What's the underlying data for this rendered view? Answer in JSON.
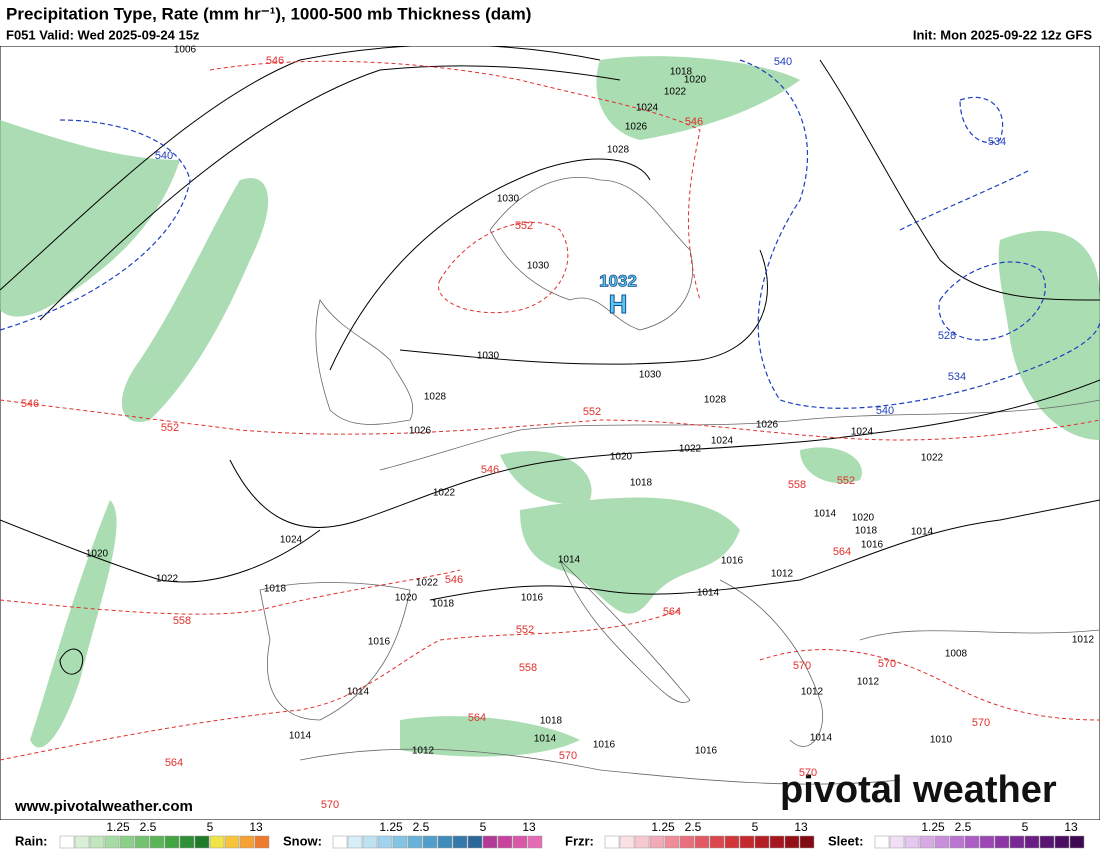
{
  "header": {
    "title": "Precipitation Type, Rate (mm hr⁻¹), 1000-500 mb Thickness (dam)",
    "valid": "F051 Valid: Wed 2025-09-24 15z",
    "init": "Init: Mon 2025-09-22 12z GFS"
  },
  "high": {
    "pressure": 1032,
    "letter": "H"
  },
  "contours": {
    "isobars": [
      1006,
      1018,
      1020,
      1022,
      1024,
      1026,
      1028,
      1030,
      1030,
      1030,
      1030,
      1028,
      1028,
      1026,
      1026,
      1024,
      1022,
      1024,
      1022,
      1020,
      1018,
      1022,
      1024,
      1022,
      1020,
      1014,
      1020,
      1018,
      1016,
      1014,
      1014,
      1016,
      1012,
      1014,
      1022,
      1020,
      1018,
      1018,
      1016,
      1016,
      1014,
      1014,
      1012,
      1014,
      1018,
      1016,
      1016,
      1012,
      1012,
      1014,
      1008,
      1010,
      1012
    ],
    "thickness": [
      546,
      546,
      552,
      546,
      552,
      552,
      546,
      558,
      552,
      564,
      546,
      558,
      552,
      558,
      564,
      570,
      570,
      564,
      570,
      564,
      570,
      570,
      570
    ],
    "thickness_cold": [
      540,
      540,
      534,
      528,
      534,
      540
    ]
  },
  "watermark": "www.pivotalweather.com",
  "logo": "pivotal weather",
  "legend": [
    {
      "name": "Rain:",
      "ticks": [
        "1.25",
        "2.5",
        "5",
        "13"
      ]
    },
    {
      "name": "Snow:",
      "ticks": [
        "1.25",
        "2.5",
        "5",
        "13"
      ]
    },
    {
      "name": "Frzr:",
      "ticks": [
        "1.25",
        "2.5",
        "5",
        "13"
      ]
    },
    {
      "name": "Sleet:",
      "ticks": [
        "1.25",
        "2.5",
        "5",
        "13"
      ]
    }
  ]
}
